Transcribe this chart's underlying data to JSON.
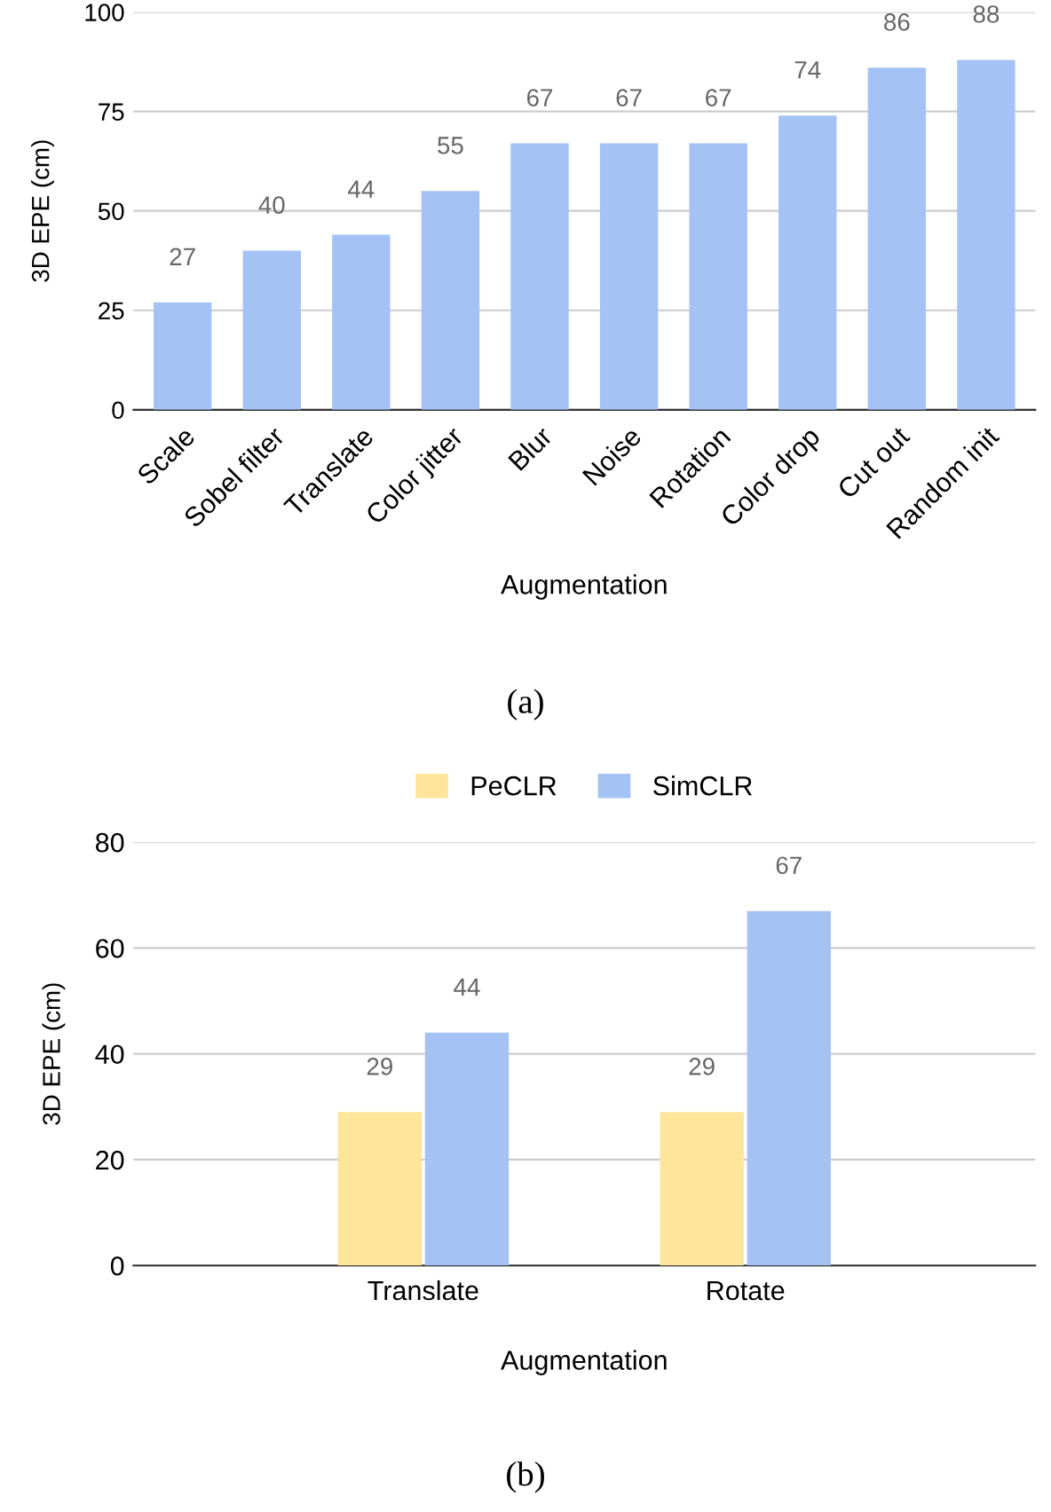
{
  "chart_data": [
    {
      "type": "bar",
      "xlabel": "Augmentation",
      "ylabel": "3D EPE (cm)",
      "categories": [
        "Scale",
        "Sobel filter",
        "Translate",
        "Color jitter",
        "Blur",
        "Noise",
        "Rotation",
        "Color drop",
        "Cut out",
        "Random init"
      ],
      "series": [
        {
          "color": "#a4c2f4",
          "values": [
            27,
            40,
            44,
            55,
            67,
            67,
            67,
            74,
            86,
            88
          ]
        }
      ],
      "ylim": [
        0,
        100
      ],
      "yticks": [
        0,
        25,
        50,
        75,
        100
      ],
      "grid": "y",
      "legend": false,
      "data_labels": true,
      "annotations": [
        "(a)"
      ]
    },
    {
      "type": "bar",
      "xlabel": "Augmentation",
      "ylabel": "3D EPE (cm)",
      "categories": [
        "Translate",
        "Rotate"
      ],
      "series": [
        {
          "name": "PeCLR",
          "color": "#ffe599",
          "values": [
            29,
            29
          ]
        },
        {
          "name": "SimCLR",
          "color": "#a4c2f4",
          "values": [
            44,
            67
          ]
        }
      ],
      "ylim": [
        0,
        80
      ],
      "yticks": [
        0,
        20,
        40,
        60,
        80
      ],
      "grid": "y",
      "legend": "top",
      "data_labels": true,
      "annotations": [
        "(b)"
      ]
    }
  ]
}
